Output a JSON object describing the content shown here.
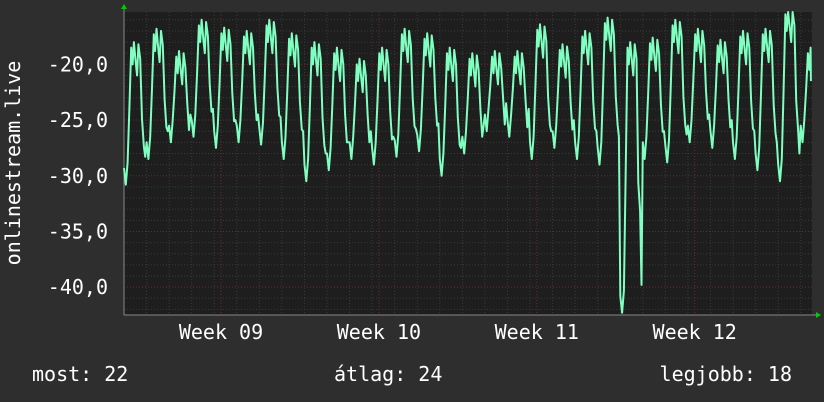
{
  "chart_data": {
    "type": "line",
    "title": "",
    "ylabel": "onlinestream.live",
    "xlabel": "",
    "ylim": [
      -42.5,
      -15.3
    ],
    "yticks": [
      -40,
      -35,
      -30,
      -25,
      -20
    ],
    "ytick_labels": [
      "-40,0",
      "-35,0",
      "-30,0",
      "-25,0",
      "-20,0"
    ],
    "xlim_days": [
      0,
      30.5
    ],
    "xticks": [
      {
        "label": "Week 09",
        "day": 4.3
      },
      {
        "label": "Week 10",
        "day": 11.3
      },
      {
        "label": "Week 11",
        "day": 18.3
      },
      {
        "label": "Week 12",
        "day": 25.3
      }
    ],
    "grid": true,
    "colors": {
      "background": "#2e2e2e",
      "plot": "#1e1e1e",
      "line": "#7fffc0",
      "grid_minor": "#3a3a3a",
      "grid_major": "#6a2a2a",
      "axis_arrow": "#00cc00"
    },
    "series": [
      {
        "name": "",
        "daily_peak": [
          -21.0,
          -19.8,
          -21.8,
          -19.0,
          -19.7,
          -20.0,
          -19.0,
          -20.2,
          -21.0,
          -21.5,
          -22.5,
          -21.5,
          -19.8,
          -20.2,
          -21.5,
          -22.0,
          -21.8,
          -21.8,
          -19.4,
          -21.2,
          -20.0,
          -18.8,
          -21.0,
          -20.6,
          -19.0,
          -19.8,
          -20.8,
          -20.0,
          -19.8,
          -18.0,
          -21.5
        ],
        "daily_trough": [
          -30.8,
          -28.5,
          -27.0,
          -26.5,
          -27.5,
          -27.0,
          -27.2,
          -28.5,
          -30.5,
          -29.5,
          -28.5,
          -29.0,
          -28.3,
          -27.8,
          -30.0,
          -28.0,
          -26.0,
          -26.5,
          -28.5,
          -27.5,
          -28.5,
          -29.0,
          -42.3,
          -28.5,
          -28.8,
          -27.0,
          -27.5,
          -28.5,
          -29.5,
          -30.5,
          -27.0
        ],
        "most_recent": -21.5
      }
    ]
  },
  "stats": {
    "now": "most: 22",
    "avg": "átlag: 24",
    "best": "legjobb: 18"
  }
}
